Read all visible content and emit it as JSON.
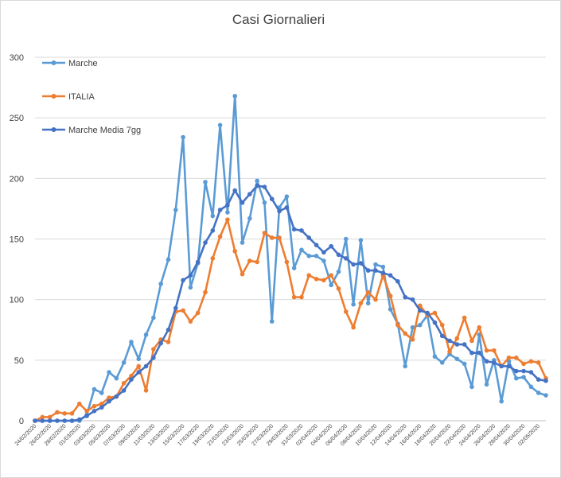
{
  "chart_data": {
    "type": "line",
    "title": "Casi Giornalieri",
    "ylim": [
      0,
      300
    ],
    "yticks": [
      0,
      50,
      100,
      150,
      200,
      250,
      300
    ],
    "grid": true,
    "legend_position": "top-left",
    "x": [
      "24/02/2020",
      "25/02/2020",
      "26/02/2020",
      "27/02/2020",
      "28/02/2020",
      "29/02/2020",
      "01/03/2020",
      "02/03/2020",
      "03/03/2020",
      "04/03/2020",
      "05/03/2020",
      "06/03/2020",
      "07/03/2020",
      "08/03/2020",
      "09/03/2020",
      "10/03/2020",
      "11/03/2020",
      "12/03/2020",
      "13/03/2020",
      "14/03/2020",
      "15/03/2020",
      "16/03/2020",
      "17/03/2020",
      "18/03/2020",
      "19/03/2020",
      "20/03/2020",
      "21/03/2020",
      "22/03/2020",
      "23/03/2020",
      "24/03/2020",
      "25/03/2020",
      "26/03/2020",
      "27/03/2020",
      "28/03/2020",
      "29/03/2020",
      "30/03/2020",
      "31/03/2020",
      "01/04/2020",
      "02/04/2020",
      "03/04/2020",
      "04/04/2020",
      "05/04/2020",
      "06/04/2020",
      "07/04/2020",
      "08/04/2020",
      "09/04/2020",
      "10/04/2020",
      "11/04/2020",
      "12/04/2020",
      "13/04/2020",
      "14/04/2020",
      "15/04/2020",
      "16/04/2020",
      "17/04/2020",
      "18/04/2020",
      "19/04/2020",
      "20/04/2020",
      "21/04/2020",
      "22/04/2020",
      "23/04/2020",
      "24/04/2020",
      "25/04/2020",
      "26/04/2020",
      "27/04/2020",
      "28/04/2020",
      "29/04/2020",
      "30/04/2020",
      "01/05/2020",
      "02/05/2020",
      "03/05/2020"
    ],
    "xtick_labels": [
      "24/02/2020",
      "26/02/2020",
      "28/02/2020",
      "01/03/2020",
      "03/03/2020",
      "05/03/2020",
      "07/03/2020",
      "09/03/2020",
      "11/03/2020",
      "13/03/2020",
      "15/03/2020",
      "17/03/2020",
      "19/03/2020",
      "21/03/2020",
      "23/03/2020",
      "25/03/2020",
      "27/03/2020",
      "29/03/2020",
      "31/03/2020",
      "02/04/2020",
      "04/04/2020",
      "06/04/2020",
      "08/04/2020",
      "10/04/2020",
      "12/04/2020",
      "14/04/2020",
      "16/04/2020",
      "18/04/2020",
      "20/04/2020",
      "22/04/2020",
      "24/04/2020",
      "26/04/2020",
      "28/04/2020",
      "30/04/2020",
      "02/05/2020"
    ],
    "series": [
      {
        "name": "Marche",
        "color": "#5b9bd5",
        "values": [
          0,
          0,
          0,
          0,
          0,
          0,
          0,
          5,
          26,
          23,
          40,
          35,
          48,
          65,
          51,
          71,
          85,
          113,
          133,
          174,
          234,
          110,
          130,
          197,
          169,
          244,
          172,
          268,
          147,
          167,
          198,
          180,
          82,
          176,
          185,
          126,
          141,
          136,
          136,
          132,
          112,
          123,
          150,
          96,
          149,
          97,
          129,
          127,
          92,
          80,
          45,
          77,
          79,
          87,
          53,
          48,
          55,
          51,
          47,
          28,
          71,
          30,
          50,
          16,
          49,
          35,
          36,
          28,
          23,
          21
        ]
      },
      {
        "name": "ITALIA",
        "color": "#ed7d31",
        "values": [
          0,
          3,
          3,
          7,
          6,
          6,
          14,
          8,
          12,
          14,
          19,
          20,
          31,
          37,
          45,
          25,
          59,
          67,
          65,
          90,
          91,
          82,
          89,
          106,
          134,
          152,
          166,
          140,
          121,
          132,
          131,
          155,
          151,
          151,
          131,
          102,
          102,
          120,
          117,
          116,
          120,
          109,
          90,
          77,
          97,
          106,
          100,
          120,
          103,
          79,
          72,
          67,
          95,
          87,
          89,
          79,
          57,
          68,
          85,
          66,
          77,
          58,
          58,
          45,
          52,
          52,
          47,
          49,
          48,
          35
        ]
      },
      {
        "name": "Marche Media 7gg",
        "color": "#4472c4",
        "values": [
          0,
          0,
          0,
          0,
          0,
          0,
          1,
          4,
          8,
          11,
          16,
          20,
          25,
          34,
          40,
          45,
          52,
          64,
          75,
          93,
          116,
          120,
          131,
          147,
          157,
          174,
          178,
          190,
          180,
          187,
          194,
          193,
          183,
          173,
          176,
          158,
          157,
          151,
          145,
          139,
          144,
          137,
          134,
          129,
          130,
          124,
          124,
          122,
          120,
          115,
          102,
          100,
          91,
          89,
          81,
          70,
          66,
          63,
          63,
          56,
          56,
          49,
          48,
          45,
          45,
          41,
          41,
          40,
          34,
          33
        ]
      }
    ]
  }
}
